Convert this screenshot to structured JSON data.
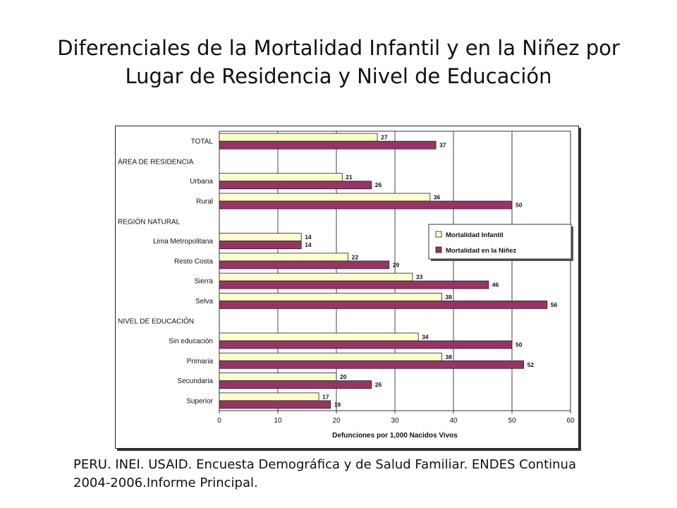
{
  "slide": {
    "title_line1": "Diferenciales de la Mortalidad Infantil y en la Niñez por",
    "title_line2": "Lugar de Residencia y Nivel de Educación",
    "source_line1": "PERU. INEI. USAID. Encuesta Demográfica y de Salud Familiar. ENDES Continua",
    "source_line2": "2004-2006.Informe Principal."
  },
  "chart_data": {
    "type": "bar",
    "orientation": "horizontal",
    "title": "",
    "xlabel": "Defunciones por 1,000 Nacidos Vivos",
    "ylabel": "",
    "xlim": [
      0,
      60
    ],
    "xticks": [
      0,
      10,
      20,
      30,
      40,
      50,
      60
    ],
    "grid": true,
    "legend_position": "right",
    "rows": [
      {
        "label": "TOTAL",
        "kind": "category",
        "values": [
          27,
          37
        ]
      },
      {
        "label": "ÁREA DE RESIDENCIA",
        "kind": "heading"
      },
      {
        "label": "Urbana",
        "kind": "category",
        "values": [
          21,
          26
        ]
      },
      {
        "label": "Rural",
        "kind": "category",
        "values": [
          36,
          50
        ]
      },
      {
        "label": "REGIÓN NATURAL",
        "kind": "heading"
      },
      {
        "label": "Lima Metropolitana",
        "kind": "category",
        "values": [
          14,
          14
        ]
      },
      {
        "label": "Resto Costa",
        "kind": "category",
        "values": [
          22,
          29
        ]
      },
      {
        "label": "Sierra",
        "kind": "category",
        "values": [
          33,
          46
        ]
      },
      {
        "label": "Selva",
        "kind": "category",
        "values": [
          38,
          56
        ]
      },
      {
        "label": "NIVEL DE EDUCACIÓN",
        "kind": "heading"
      },
      {
        "label": "Sin educación",
        "kind": "category",
        "values": [
          34,
          50
        ]
      },
      {
        "label": "Primaria",
        "kind": "category",
        "values": [
          38,
          52
        ]
      },
      {
        "label": "Secundaria",
        "kind": "category",
        "values": [
          20,
          26
        ]
      },
      {
        "label": "Superior",
        "kind": "category",
        "values": [
          17,
          19
        ]
      }
    ],
    "series": [
      {
        "name": "Mortalidad Infantil",
        "color": "#FFFFCC"
      },
      {
        "name": "Mortalidad en la Niñez",
        "color": "#993366"
      }
    ]
  }
}
